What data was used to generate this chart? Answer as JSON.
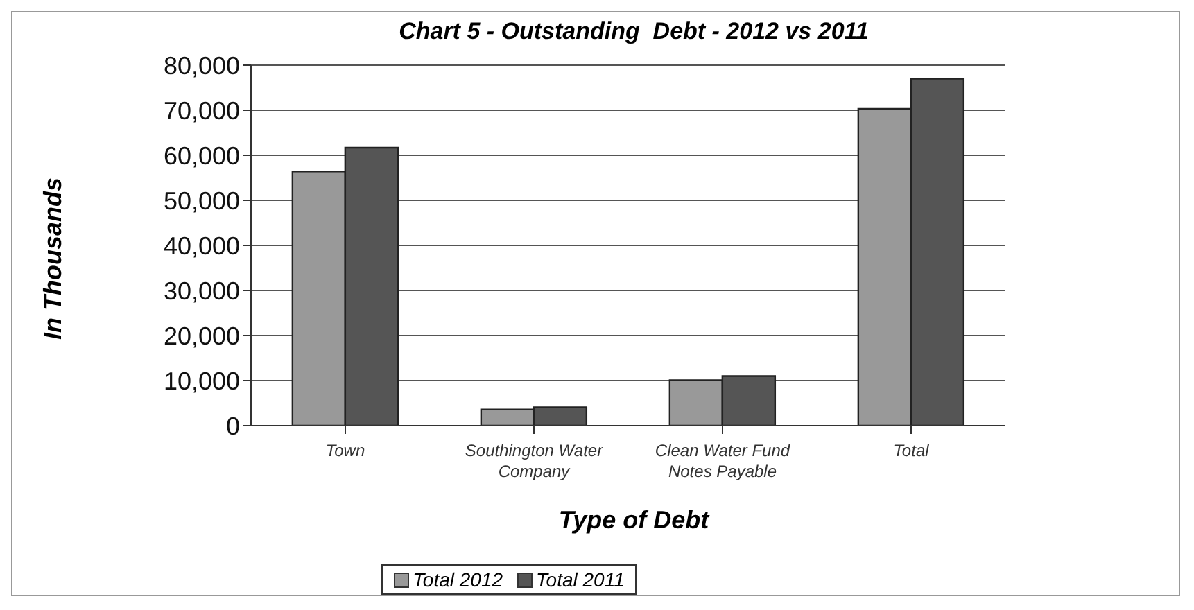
{
  "chart_data": {
    "type": "bar",
    "title": "Chart 5 - Outstanding  Debt - 2012 vs 2011",
    "xlabel": "Type of Debt",
    "ylabel": "In Thousands",
    "categories": [
      "Town",
      "Southington Water Company",
      "Clean Water Fund Notes Payable",
      "Total"
    ],
    "series": [
      {
        "name": "Total 2012",
        "color": "#999999",
        "values": [
          56400,
          3600,
          10100,
          70300
        ]
      },
      {
        "name": "Total 2011",
        "color": "#555555",
        "values": [
          61700,
          4100,
          11000,
          77000
        ]
      }
    ],
    "ylim": [
      0,
      80000
    ],
    "yticks": [
      0,
      {
        "value": 10000,
        "label": "10,000"
      },
      {
        "value": 20000,
        "label": "20,000"
      },
      {
        "value": 30000,
        "label": "30,000"
      },
      {
        "value": 40000,
        "label": "40,000"
      },
      {
        "value": 50000,
        "label": "50,000"
      },
      {
        "value": 60000,
        "label": "60,000"
      },
      {
        "value": 70000,
        "label": "70,000"
      },
      {
        "value": 80000,
        "label": "80,000"
      }
    ],
    "grid": "y",
    "legend": "bottom"
  }
}
